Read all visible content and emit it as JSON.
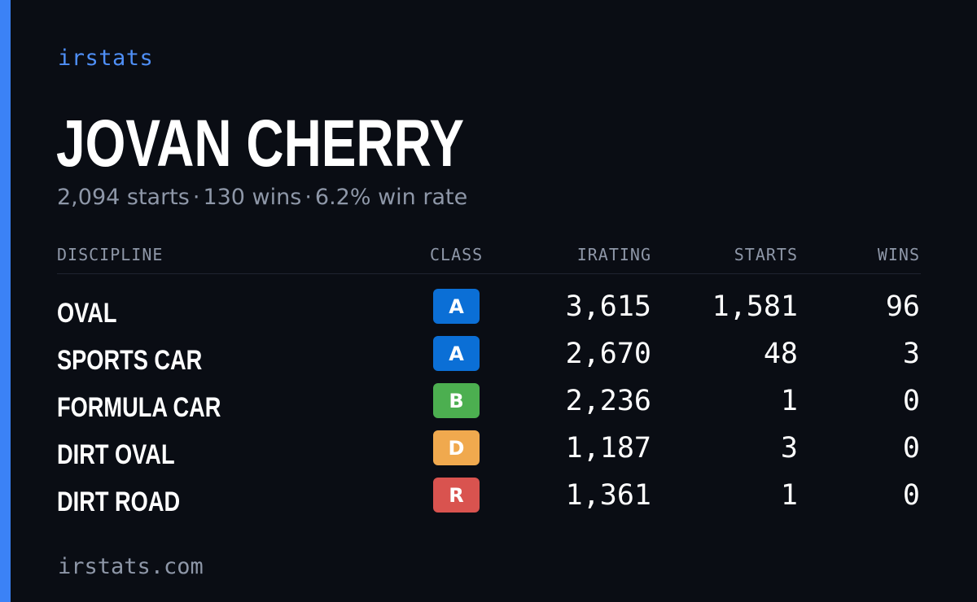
{
  "brand": "irstats",
  "driver": {
    "name": "JOVAN CHERRY",
    "starts_text": "2,094 starts",
    "wins_text": "130 wins",
    "win_rate_text": "6.2% win rate",
    "separator": "·"
  },
  "table": {
    "headers": {
      "discipline": "DISCIPLINE",
      "class": "CLASS",
      "irating": "IRATING",
      "starts": "STARTS",
      "wins": "WINS"
    },
    "rows": [
      {
        "discipline": "OVAL",
        "class": "A",
        "class_color": "#0b6fd6",
        "irating": "3,615",
        "starts": "1,581",
        "wins": "96"
      },
      {
        "discipline": "SPORTS CAR",
        "class": "A",
        "class_color": "#0b6fd6",
        "irating": "2,670",
        "starts": "48",
        "wins": "3"
      },
      {
        "discipline": "FORMULA CAR",
        "class": "B",
        "class_color": "#4caf50",
        "irating": "2,236",
        "starts": "1",
        "wins": "0"
      },
      {
        "discipline": "DIRT OVAL",
        "class": "D",
        "class_color": "#f0a94e",
        "irating": "1,187",
        "starts": "3",
        "wins": "0"
      },
      {
        "discipline": "DIRT ROAD",
        "class": "R",
        "class_color": "#d9534f",
        "irating": "1,361",
        "starts": "1",
        "wins": "0"
      }
    ]
  },
  "footer": "irstats.com",
  "colors": {
    "background": "#0a0d14",
    "accent": "#3b82f6",
    "brand_text": "#4f8ff7",
    "muted_text": "#8e97a8"
  }
}
